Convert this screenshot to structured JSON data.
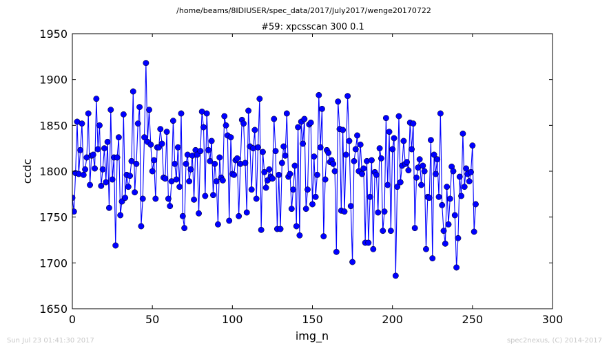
{
  "header": {
    "path": "/home/beams/8IDIUSER/spec_data/2017/July2017/wenge20170722",
    "scan": "#59: xpcsscan 300 0.1"
  },
  "footer": {
    "timestamp": "Sun Jul 23 01:41:30 2017",
    "credit": "spec2nexus, (C) 2014-2017"
  },
  "chart_data": {
    "type": "line",
    "title": "#59: xpcsscan 300 0.1",
    "xlabel": "img_n",
    "ylabel": "ccdc",
    "xlim": [
      0,
      300
    ],
    "ylim": [
      1650,
      1950
    ],
    "xticks": [
      0,
      50,
      100,
      150,
      200,
      250,
      300
    ],
    "yticks": [
      1650,
      1700,
      1750,
      1800,
      1850,
      1900,
      1950
    ],
    "grid": false,
    "line_color": "#0000ff",
    "marker": "circle",
    "series": [
      {
        "x_start": 0,
        "x_step": 1,
        "values": [
          1771,
          1756,
          1798,
          1854,
          1797,
          1823,
          1852,
          1796,
          1802,
          1815,
          1863,
          1785,
          1817,
          1818,
          1803,
          1879,
          1824,
          1850,
          1784,
          1802,
          1825,
          1788,
          1832,
          1760,
          1867,
          1791,
          1815,
          1719,
          1815,
          1837,
          1752,
          1767,
          1862,
          1771,
          1796,
          1783,
          1795,
          1811,
          1887,
          1777,
          1808,
          1852,
          1870,
          1740,
          1770,
          1837,
          1918,
          1832,
          1867,
          1829,
          1800,
          1812,
          1770,
          1826,
          1826,
          1846,
          1830,
          1793,
          1792,
          1843,
          1770,
          1762,
          1789,
          1855,
          1808,
          1791,
          1826,
          1783,
          1863,
          1751,
          1738,
          1808,
          1818,
          1789,
          1802,
          1817,
          1769,
          1823,
          1818,
          1754,
          1822,
          1865,
          1848,
          1773,
          1863,
          1823,
          1811,
          1833,
          1774,
          1808,
          1789,
          1742,
          1815,
          1793,
          1790,
          1860,
          1850,
          1839,
          1746,
          1837,
          1797,
          1796,
          1812,
          1814,
          1751,
          1808,
          1856,
          1852,
          1809,
          1755,
          1866,
          1827,
          1780,
          1825,
          1845,
          1770,
          1826,
          1879,
          1736,
          1821,
          1799,
          1782,
          1790,
          1802,
          1794,
          1792,
          1857,
          1822,
          1737,
          1796,
          1737,
          1809,
          1827,
          1817,
          1863,
          1794,
          1797,
          1759,
          1780,
          1806,
          1740,
          1848,
          1730,
          1854,
          1830,
          1857,
          1759,
          1780,
          1851,
          1853,
          1764,
          1816,
          1772,
          1796,
          1883,
          1826,
          1868,
          1729,
          1791,
          1823,
          1820,
          1810,
          1812,
          1808,
          1800,
          1712,
          1876,
          1846,
          1757,
          1845,
          1756,
          1818,
          1882,
          1833,
          1762,
          1701,
          1811,
          1824,
          1839,
          1800,
          1829,
          1797,
          1803,
          1722,
          1811,
          1722,
          1772,
          1812,
          1715,
          1799,
          1796,
          1755,
          1825,
          1814,
          1735,
          1756,
          1858,
          1785,
          1843,
          1735,
          1824,
          1836,
          1686,
          1783,
          1860,
          1788,
          1806,
          1833,
          1808,
          1810,
          1801,
          1853,
          1824,
          1852,
          1738,
          1793,
          1804,
          1813,
          1785,
          1806,
          1800,
          1715,
          1772,
          1771,
          1834,
          1705,
          1818,
          1797,
          1813,
          1772,
          1863,
          1763,
          1735,
          1721,
          1783,
          1742,
          1770,
          1805,
          1800,
          1752,
          1695,
          1727,
          1794,
          1773,
          1841,
          1783,
          1803,
          1797,
          1789,
          1799,
          1828,
          1734,
          1764
        ]
      }
    ]
  }
}
